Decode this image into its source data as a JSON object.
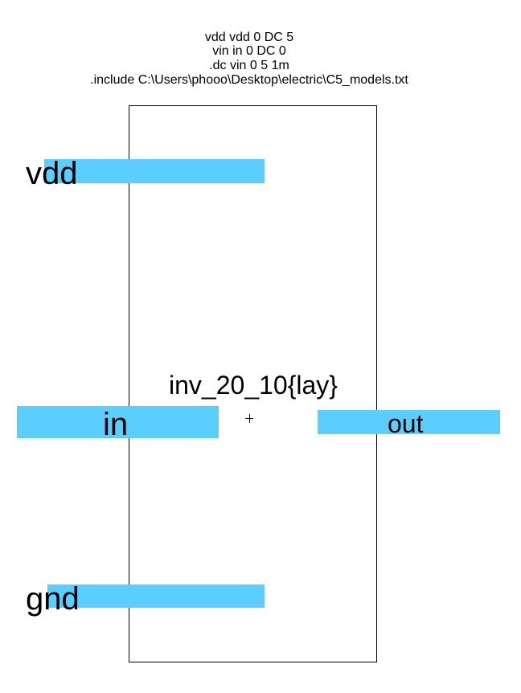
{
  "spice_lines": [
    "vdd vdd 0 DC 5",
    "vin in 0 DC 0",
    ".dc vin 0 5 1m",
    ".include C:\\Users\\phooo\\Desktop\\electric\\C5_models.txt"
  ],
  "cell_name": "inv_20_10{lay}",
  "ports": {
    "vdd": "vdd",
    "in": "in",
    "out": "out",
    "gnd": "gnd"
  }
}
